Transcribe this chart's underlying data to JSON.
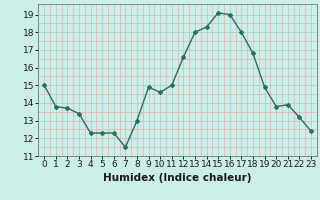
{
  "x": [
    0,
    1,
    2,
    3,
    4,
    5,
    6,
    7,
    8,
    9,
    10,
    11,
    12,
    13,
    14,
    15,
    16,
    17,
    18,
    19,
    20,
    21,
    22,
    23
  ],
  "y": [
    15.0,
    13.8,
    13.7,
    13.4,
    12.3,
    12.3,
    12.3,
    11.5,
    13.0,
    14.9,
    14.6,
    15.0,
    16.6,
    18.0,
    18.3,
    19.1,
    19.0,
    18.0,
    16.8,
    14.9,
    13.8,
    13.9,
    13.2,
    12.4
  ],
  "line_color": "#2d6e5e",
  "bg_color": "#cceee8",
  "grid_major_color": "#b8ccc8",
  "grid_minor_color": "#e8b8b8",
  "xlabel": "Humidex (Indice chaleur)",
  "xlim": [
    -0.5,
    23.5
  ],
  "ylim": [
    11,
    19.6
  ],
  "yticks": [
    11,
    12,
    13,
    14,
    15,
    16,
    17,
    18,
    19
  ],
  "xticks": [
    0,
    1,
    2,
    3,
    4,
    5,
    6,
    7,
    8,
    9,
    10,
    11,
    12,
    13,
    14,
    15,
    16,
    17,
    18,
    19,
    20,
    21,
    22,
    23
  ],
  "tick_fontsize": 6.5,
  "label_fontsize": 7.5
}
